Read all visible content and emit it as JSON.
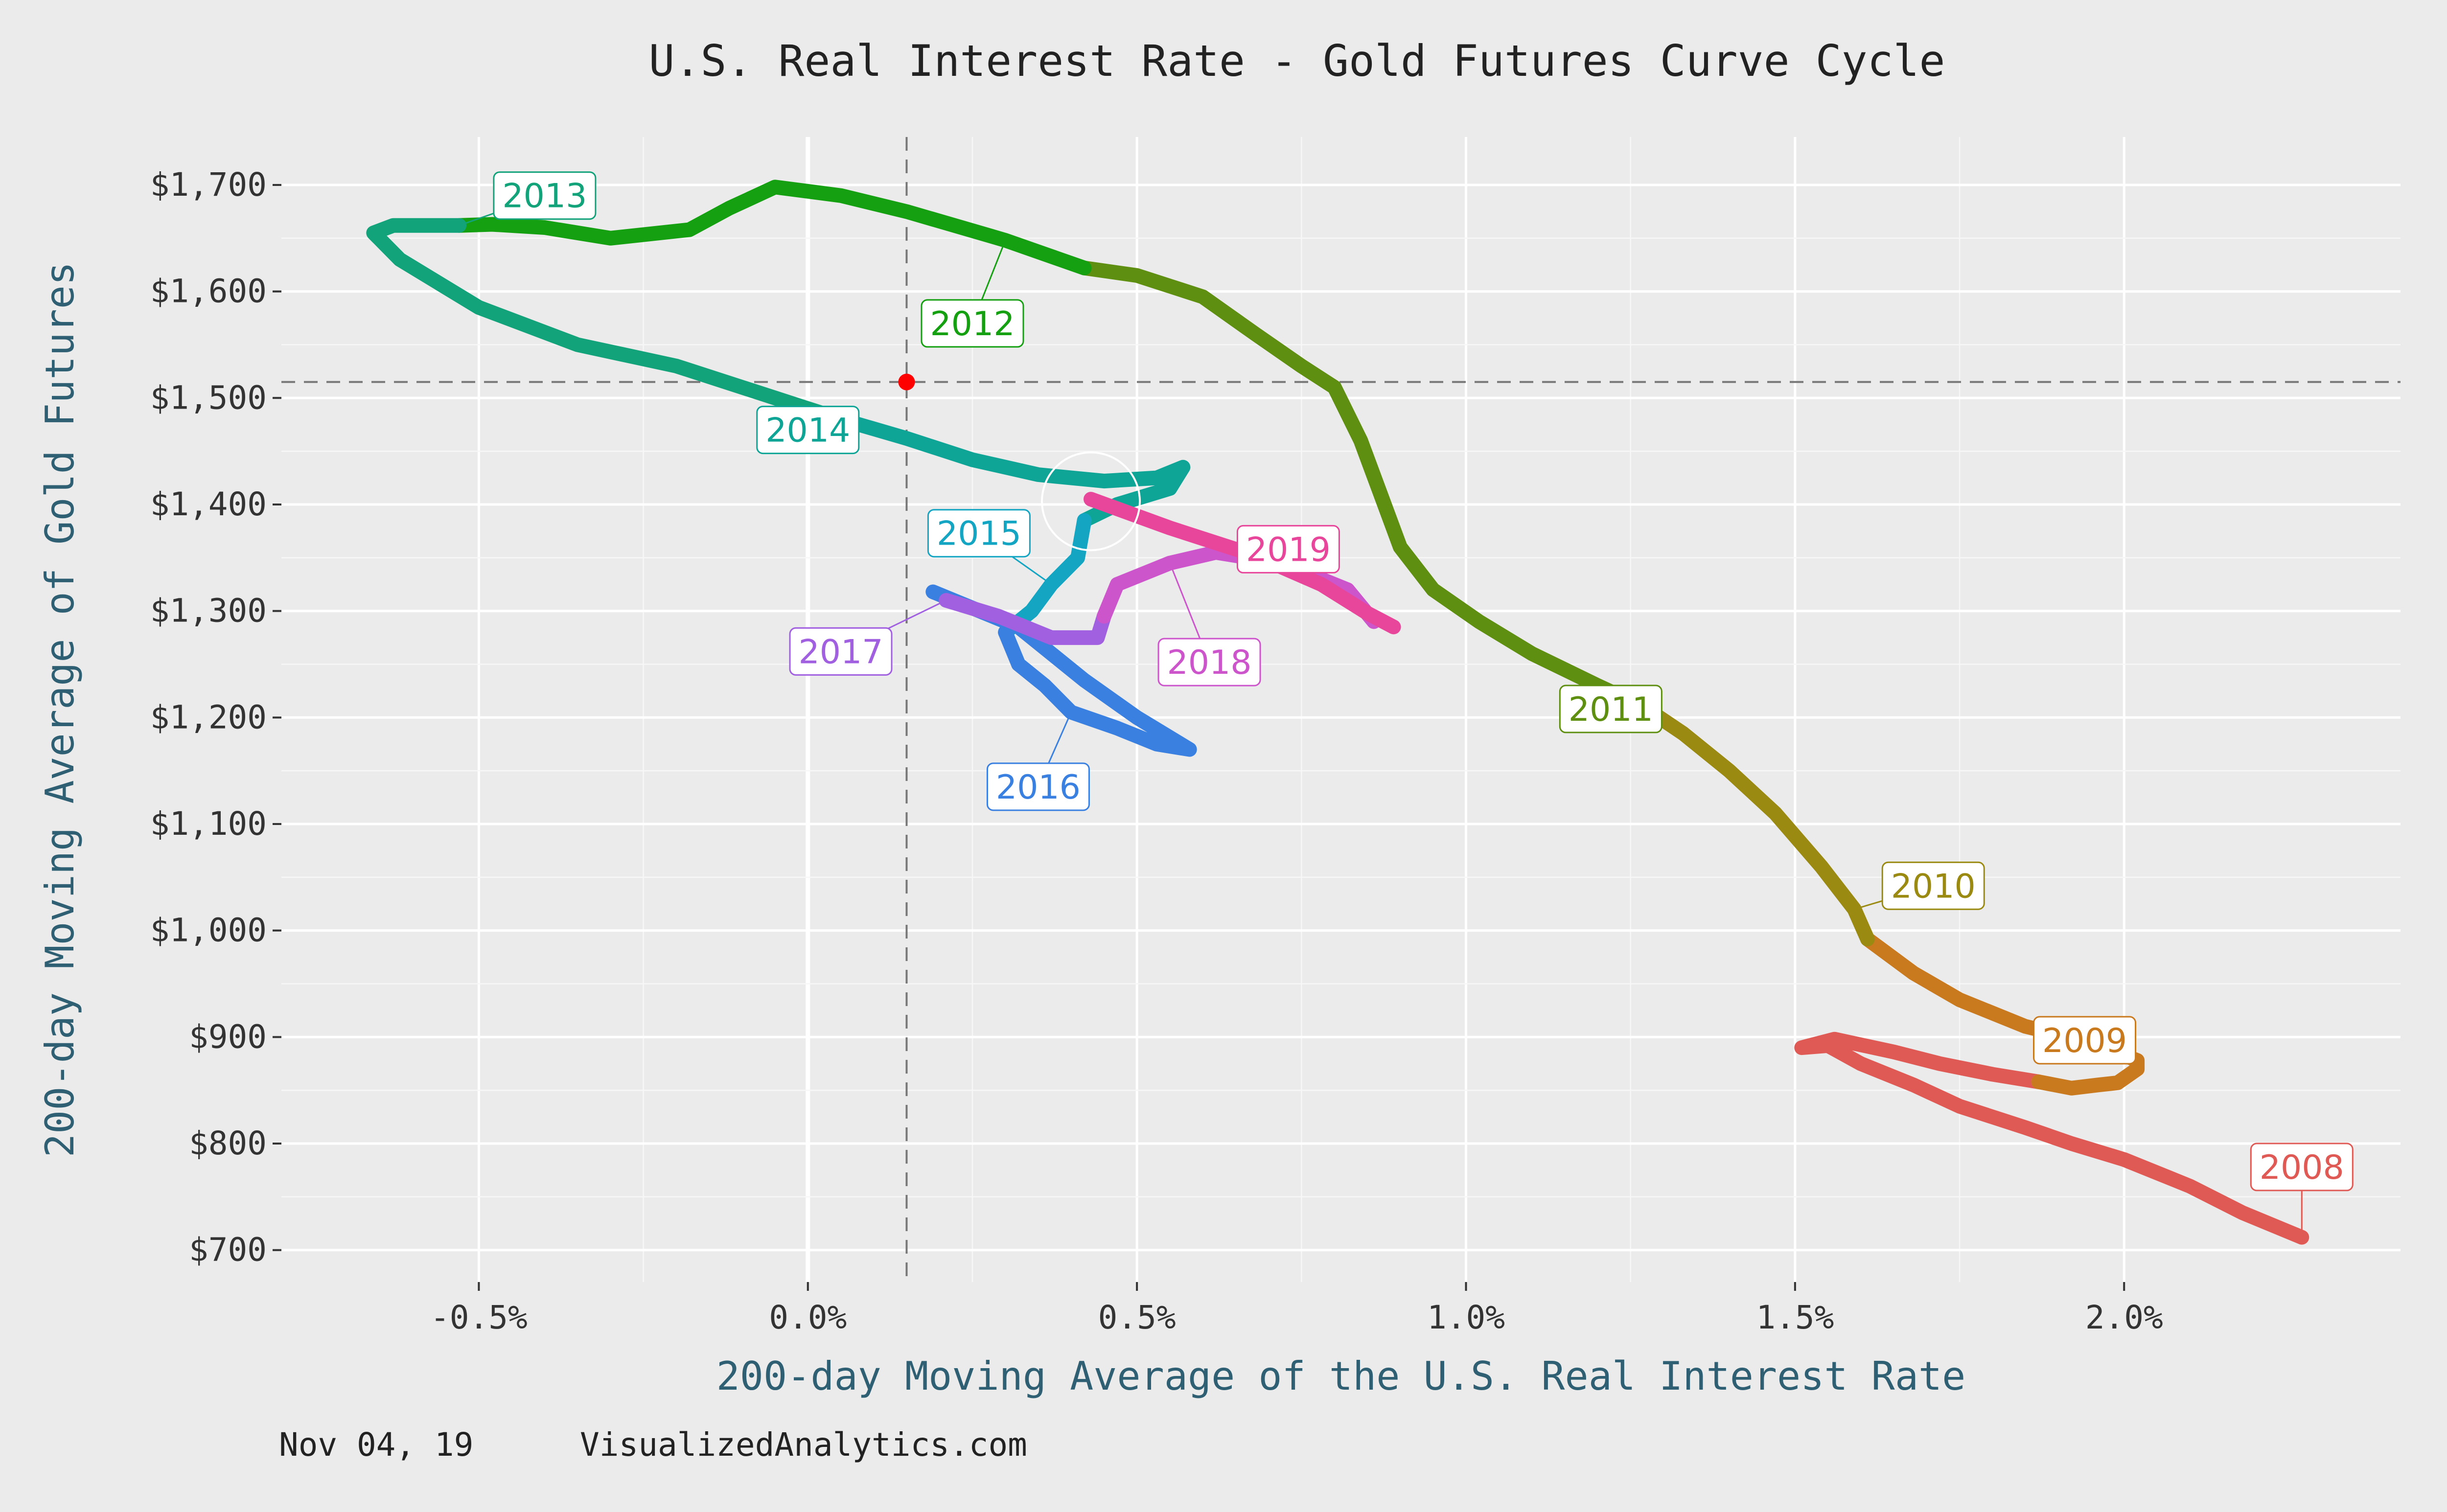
{
  "chart_data": {
    "type": "line",
    "title": "U.S. Real Interest Rate - Gold Futures Curve Cycle",
    "xlabel": "200-day Moving Average of the U.S. Real Interest Rate",
    "ylabel": "200-day Moving Average of Gold Futures",
    "xlim": [
      -0.8,
      2.42
    ],
    "ylim": [
      670,
      1745
    ],
    "x_ticks": [
      {
        "value": -0.5,
        "label": "-0.5%"
      },
      {
        "value": 0.0,
        "label": "0.0%"
      },
      {
        "value": 0.5,
        "label": "0.5%"
      },
      {
        "value": 1.0,
        "label": "1.0%"
      },
      {
        "value": 1.5,
        "label": "1.5%"
      },
      {
        "value": 2.0,
        "label": "2.0%"
      }
    ],
    "y_ticks": [
      {
        "value": 700,
        "label": "$700"
      },
      {
        "value": 800,
        "label": "$800"
      },
      {
        "value": 900,
        "label": "$900"
      },
      {
        "value": 1000,
        "label": "$1,000"
      },
      {
        "value": 1100,
        "label": "$1,100"
      },
      {
        "value": 1200,
        "label": "$1,200"
      },
      {
        "value": 1300,
        "label": "$1,300"
      },
      {
        "value": 1400,
        "label": "$1,400"
      },
      {
        "value": 1500,
        "label": "$1,500"
      },
      {
        "value": 1600,
        "label": "$1,600"
      },
      {
        "value": 1700,
        "label": "$1,700"
      }
    ],
    "grid": true,
    "reference_lines": {
      "x": 0.15,
      "y": 1515
    },
    "current_point": {
      "x": 0.15,
      "y": 1515,
      "color": "#ff0000"
    },
    "highlight_circle": {
      "x": 0.43,
      "y": 1403
    },
    "series": [
      {
        "name": "2008",
        "color": "#e05a55",
        "label_at": {
          "x": 2.27,
          "y": 778
        },
        "points": [
          [
            2.27,
            712
          ],
          [
            2.18,
            735
          ],
          [
            2.1,
            760
          ],
          [
            2.0,
            785
          ],
          [
            1.92,
            800
          ],
          [
            1.85,
            815
          ],
          [
            1.75,
            835
          ],
          [
            1.68,
            855
          ],
          [
            1.6,
            875
          ],
          [
            1.55,
            892
          ],
          [
            1.51,
            890
          ],
          [
            1.56,
            898
          ],
          [
            1.65,
            886
          ],
          [
            1.72,
            875
          ],
          [
            1.8,
            865
          ],
          [
            1.87,
            858
          ]
        ]
      },
      {
        "name": "2009",
        "color": "#c97a1f",
        "label_at": {
          "x": 1.94,
          "y": 897
        },
        "points": [
          [
            1.87,
            858
          ],
          [
            1.92,
            852
          ],
          [
            1.96,
            855
          ],
          [
            1.99,
            857
          ],
          [
            2.02,
            870
          ],
          [
            2.02,
            878
          ],
          [
            1.95,
            895
          ],
          [
            1.85,
            910
          ],
          [
            1.75,
            935
          ],
          [
            1.68,
            960
          ],
          [
            1.61,
            992
          ]
        ]
      },
      {
        "name": "2010",
        "color": "#9a8a12",
        "label_at": {
          "x": 1.71,
          "y": 1042
        },
        "points": [
          [
            1.61,
            992
          ],
          [
            1.59,
            1020
          ],
          [
            1.54,
            1060
          ],
          [
            1.47,
            1110
          ],
          [
            1.4,
            1150
          ],
          [
            1.33,
            1185
          ],
          [
            1.27,
            1210
          ]
        ]
      },
      {
        "name": "2011",
        "color": "#5f8f10",
        "label_at": {
          "x": 1.22,
          "y": 1208
        },
        "points": [
          [
            1.27,
            1210
          ],
          [
            1.2,
            1230
          ],
          [
            1.1,
            1260
          ],
          [
            1.02,
            1290
          ],
          [
            0.95,
            1320
          ],
          [
            0.9,
            1360
          ],
          [
            0.87,
            1410
          ],
          [
            0.84,
            1460
          ],
          [
            0.8,
            1510
          ],
          [
            0.75,
            1530
          ],
          [
            0.68,
            1560
          ],
          [
            0.6,
            1595
          ],
          [
            0.5,
            1615
          ],
          [
            0.42,
            1622
          ]
        ]
      },
      {
        "name": "2012",
        "color": "#14a010",
        "label_at": {
          "x": 0.25,
          "y": 1570
        },
        "points": [
          [
            0.42,
            1622
          ],
          [
            0.3,
            1648
          ],
          [
            0.15,
            1675
          ],
          [
            0.05,
            1690
          ],
          [
            -0.05,
            1698
          ],
          [
            -0.12,
            1678
          ],
          [
            -0.18,
            1658
          ],
          [
            -0.3,
            1650
          ],
          [
            -0.4,
            1660
          ],
          [
            -0.48,
            1663
          ],
          [
            -0.53,
            1662
          ]
        ]
      },
      {
        "name": "2013",
        "color": "#12a37a",
        "label_at": {
          "x": -0.4,
          "y": 1690
        },
        "points": [
          [
            -0.53,
            1662
          ],
          [
            -0.63,
            1662
          ],
          [
            -0.66,
            1655
          ],
          [
            -0.62,
            1630
          ],
          [
            -0.5,
            1585
          ],
          [
            -0.35,
            1550
          ],
          [
            -0.2,
            1530
          ],
          [
            -0.05,
            1500
          ],
          [
            0.05,
            1480
          ]
        ]
      },
      {
        "name": "2014",
        "color": "#0ea596",
        "label_at": {
          "x": 0.0,
          "y": 1470
        },
        "points": [
          [
            0.05,
            1480
          ],
          [
            0.15,
            1462
          ],
          [
            0.25,
            1442
          ],
          [
            0.35,
            1428
          ],
          [
            0.45,
            1422
          ],
          [
            0.53,
            1425
          ],
          [
            0.57,
            1435
          ],
          [
            0.55,
            1415
          ],
          [
            0.47,
            1400
          ],
          [
            0.42,
            1385
          ]
        ]
      },
      {
        "name": "2015",
        "color": "#14a5c3",
        "label_at": {
          "x": 0.26,
          "y": 1373
        },
        "points": [
          [
            0.42,
            1385
          ],
          [
            0.41,
            1350
          ],
          [
            0.37,
            1325
          ],
          [
            0.34,
            1300
          ],
          [
            0.3,
            1280
          ]
        ]
      },
      {
        "name": "2016",
        "color": "#3a80e0",
        "label_at": {
          "x": 0.35,
          "y": 1135
        },
        "points": [
          [
            0.3,
            1280
          ],
          [
            0.32,
            1250
          ],
          [
            0.36,
            1230
          ],
          [
            0.4,
            1205
          ],
          [
            0.47,
            1190
          ],
          [
            0.53,
            1175
          ],
          [
            0.58,
            1170
          ],
          [
            0.5,
            1200
          ],
          [
            0.42,
            1235
          ],
          [
            0.32,
            1285
          ],
          [
            0.19,
            1318
          ]
        ]
      },
      {
        "name": "2017",
        "color": "#a060e0",
        "label_at": {
          "x": 0.05,
          "y": 1262
        },
        "points": [
          [
            0.21,
            1310
          ],
          [
            0.29,
            1295
          ],
          [
            0.37,
            1275
          ],
          [
            0.44,
            1275
          ],
          [
            0.45,
            1295
          ]
        ]
      },
      {
        "name": "2018",
        "color": "#cd55cc",
        "label_at": {
          "x": 0.61,
          "y": 1252
        },
        "points": [
          [
            0.45,
            1295
          ],
          [
            0.47,
            1325
          ],
          [
            0.55,
            1345
          ],
          [
            0.62,
            1355
          ],
          [
            0.72,
            1345
          ],
          [
            0.82,
            1320
          ],
          [
            0.86,
            1290
          ]
        ]
      },
      {
        "name": "2019",
        "color": "#e8469a",
        "label_at": {
          "x": 0.73,
          "y": 1358
        },
        "points": [
          [
            0.89,
            1285
          ],
          [
            0.85,
            1298
          ],
          [
            0.78,
            1325
          ],
          [
            0.68,
            1352
          ],
          [
            0.55,
            1378
          ],
          [
            0.43,
            1405
          ]
        ]
      }
    ]
  },
  "footer": {
    "date": "Nov 04, 19",
    "source": "VisualizedAnalytics.com"
  }
}
